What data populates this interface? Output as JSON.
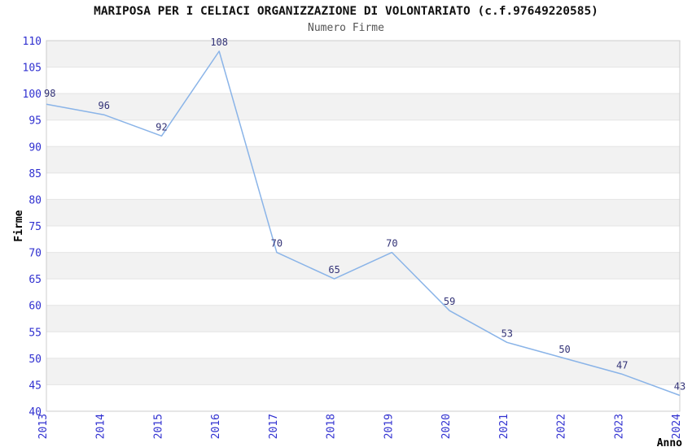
{
  "header": {
    "title": "MARIPOSA PER I CELIACI ORGANIZZAZIONE DI VOLONTARIATO (c.f.97649220585)",
    "subtitle": "Numero Firme"
  },
  "chart_data": {
    "type": "line",
    "x": [
      2013,
      2014,
      2015,
      2016,
      2017,
      2018,
      2019,
      2020,
      2021,
      2022,
      2023,
      2024
    ],
    "values": [
      98,
      96,
      92,
      108,
      70,
      65,
      70,
      59,
      53,
      50,
      47,
      43
    ],
    "point_labels": [
      "98",
      "96",
      "92",
      "108",
      "70",
      "65",
      "70",
      "59",
      "53",
      "50",
      "47",
      "43"
    ],
    "title": "MARIPOSA PER I CELIACI ORGANIZZAZIONE DI VOLONTARIATO (c.f.97649220585)",
    "subtitle": "Numero Firme",
    "xlabel": "Anno",
    "ylabel": "Firme",
    "ylim": [
      40,
      110
    ],
    "ytick_step": 5,
    "grid": true,
    "banded_background": true,
    "legend": "none",
    "colors": {
      "line": "#8ab4e8",
      "point_label": "#333377",
      "tick_label": "#3030d0",
      "band": "#f2f2f2",
      "gridline": "#e4e4e4",
      "plot_border": "#cccccc",
      "title": "#111111",
      "subtitle": "#555555",
      "axis_title": "#000000",
      "background": "#ffffff"
    }
  }
}
